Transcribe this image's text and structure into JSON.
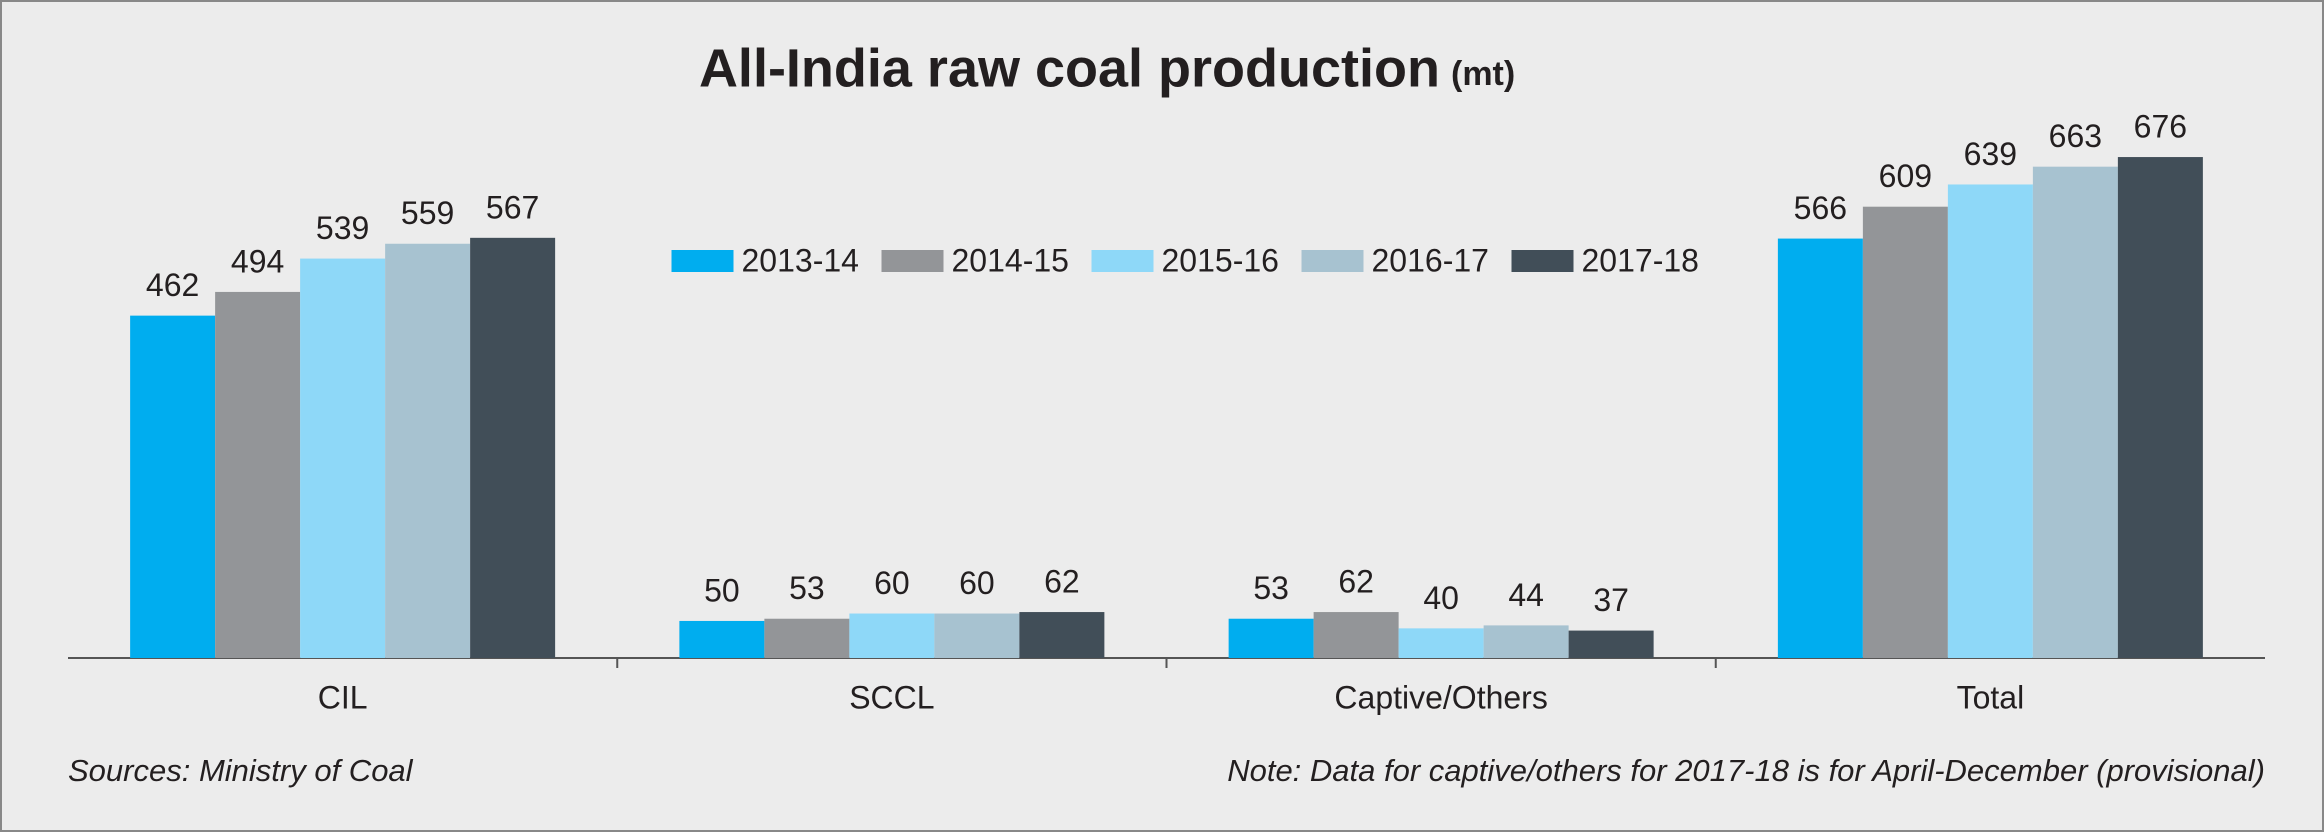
{
  "chart_data": {
    "type": "bar",
    "title": "All-India raw coal production",
    "unit": "(mt)",
    "categories": [
      "CIL",
      "SCCL",
      "Captive/Others",
      "Total"
    ],
    "series": [
      {
        "name": "2013-14",
        "color": "#00adef",
        "values": [
          462,
          50,
          53,
          566
        ]
      },
      {
        "name": "2014-15",
        "color": "#939598",
        "values": [
          494,
          53,
          62,
          609
        ]
      },
      {
        "name": "2015-16",
        "color": "#8ed8f8",
        "values": [
          539,
          60,
          40,
          639
        ]
      },
      {
        "name": "2016-17",
        "color": "#a7c2d0",
        "values": [
          559,
          60,
          44,
          663
        ]
      },
      {
        "name": "2017-18",
        "color": "#414e58",
        "values": [
          567,
          62,
          37,
          676
        ]
      }
    ],
    "ylim": [
      0,
      726
    ],
    "legend": "top-center",
    "source": "Sources: Ministry of Coal",
    "note": "Note: Data for captive/others for 2017-18 is for April-December (provisional)"
  }
}
